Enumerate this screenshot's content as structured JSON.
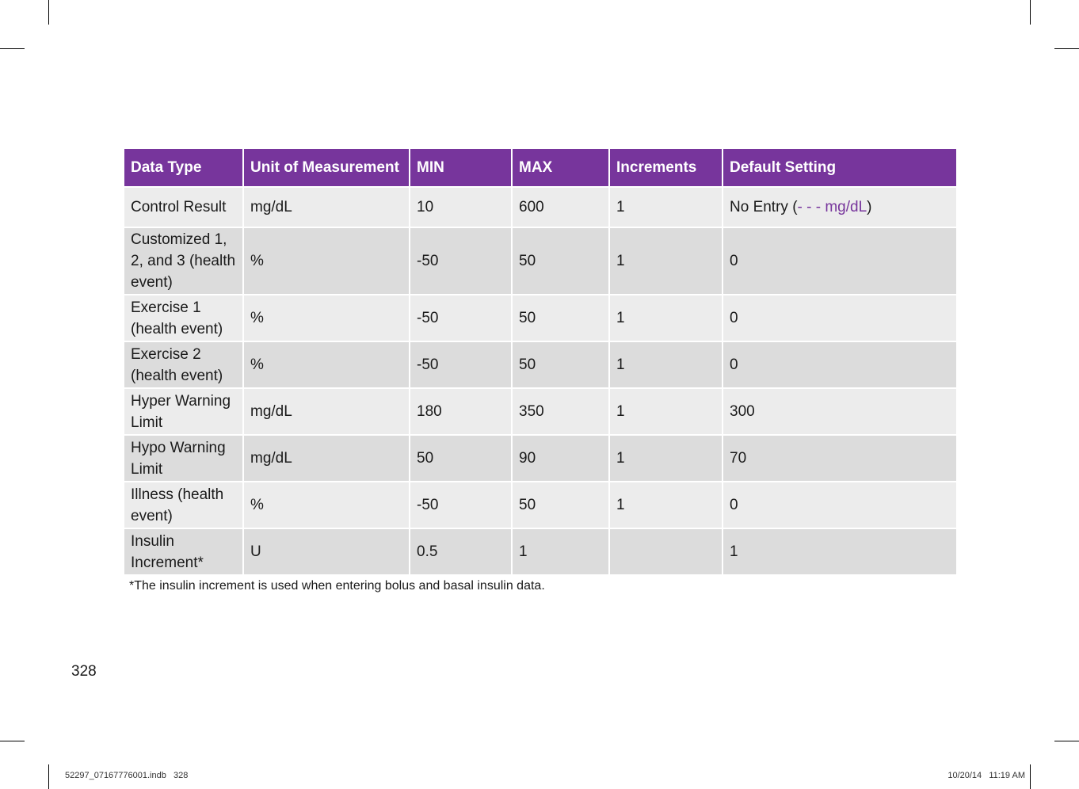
{
  "table": {
    "headers": [
      "Data Type",
      "Unit of Measurement",
      "MIN",
      "MAX",
      "Increments",
      "Default Setting"
    ],
    "rows": [
      {
        "data_type": "Control Result",
        "unit": "mg/dL",
        "min": "10",
        "max": "600",
        "increments": "1",
        "default_prefix": "No Entry (",
        "default_highlight": "- - - mg/dL",
        "default_suffix": ")"
      },
      {
        "data_type": "Customized 1, 2, and 3 (health event)",
        "unit": "%",
        "min": "-50",
        "max": "50",
        "increments": "1",
        "default": "0"
      },
      {
        "data_type": "Exercise 1 (health event)",
        "unit": "%",
        "min": "-50",
        "max": "50",
        "increments": "1",
        "default": "0"
      },
      {
        "data_type": "Exercise 2 (health event)",
        "unit": "%",
        "min": "-50",
        "max": "50",
        "increments": "1",
        "default": "0"
      },
      {
        "data_type": "Hyper Warning Limit",
        "unit": "mg/dL",
        "min": "180",
        "max": "350",
        "increments": "1",
        "default": "300"
      },
      {
        "data_type": "Hypo Warning Limit",
        "unit": "mg/dL",
        "min": "50",
        "max": "90",
        "increments": "1",
        "default": "70"
      },
      {
        "data_type": "Illness (health event)",
        "unit": "%",
        "min": "-50",
        "max": "50",
        "increments": "1",
        "default": "0"
      },
      {
        "data_type": "Insulin Increment*",
        "unit": "U",
        "min": "0.5",
        "max": "1",
        "increments": "",
        "default": "1"
      }
    ]
  },
  "footnote": "*The insulin increment is used when entering bolus and basal insulin data.",
  "page_number": "328",
  "slug": {
    "file": "52297_07167776001.indb   328",
    "timestamp": "10/20/14   11:19 AM"
  },
  "colors": {
    "header_bg": "#77359c",
    "row_light": "#ececec",
    "row_dark": "#dcdcdc",
    "accent_text": "#77359c"
  }
}
